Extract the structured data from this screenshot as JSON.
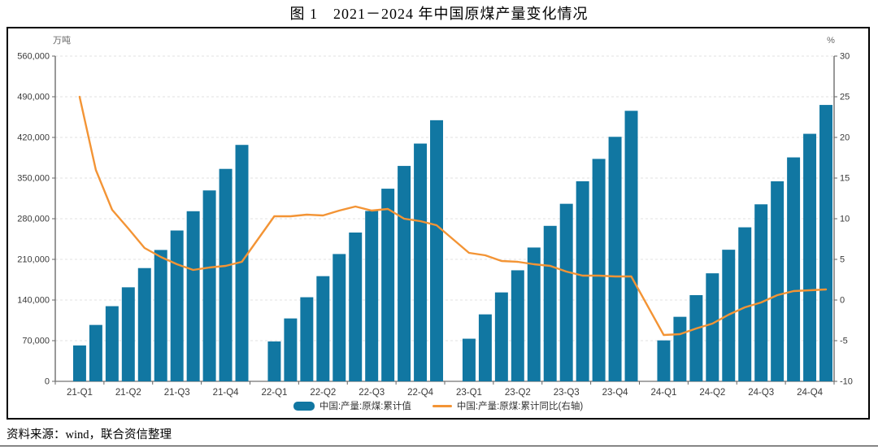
{
  "title": "图 1　2021－2024 年中国原煤产量变化情况",
  "source_note": "资料来源：wind，联合资信整理",
  "colors": {
    "bar": "#1177a2",
    "line": "#f39435",
    "grid": "#e2e2e2",
    "axis_line": "#555555",
    "x_axis_line": "#8a8a8a",
    "tick": "#666666",
    "text": "#3a3a3a",
    "unit_text": "#666666",
    "border": "#000000"
  },
  "legend": [
    {
      "label": "中国:产量:原煤:累计值",
      "type": "bar"
    },
    {
      "label": "中国:产量:原煤:累计同比(右轴)",
      "type": "line"
    }
  ],
  "chart_data": {
    "type": "bar+line",
    "title": "图 1　2021－2024 年中国原煤产量变化情况",
    "left_axis": {
      "unit": "万吨",
      "min": 0,
      "max": 560000,
      "step": 70000,
      "tick_labels": [
        "560,000",
        "490,000",
        "420,000",
        "350,000",
        "280,000",
        "210,000",
        "140,000",
        "70,000",
        "0"
      ]
    },
    "right_axis": {
      "unit": "%",
      "min": -10,
      "max": 30,
      "step": 5,
      "tick_labels": [
        "30",
        "25",
        "20",
        "15",
        "10",
        "5",
        "0",
        "-5",
        "-10"
      ]
    },
    "x_tick_labels": [
      "21-Q1",
      "21-Q2",
      "21-Q3",
      "21-Q4",
      "22-Q1",
      "22-Q2",
      "22-Q3",
      "22-Q4",
      "23-Q1",
      "23-Q2",
      "23-Q3",
      "23-Q4",
      "24-Q1",
      "24-Q2",
      "24-Q3",
      "24-Q4"
    ],
    "months_per_year": 12,
    "bars_per_year": 11,
    "months": [
      "2021-02",
      "2021-03",
      "2021-04",
      "2021-05",
      "2021-06",
      "2021-07",
      "2021-08",
      "2021-09",
      "2021-10",
      "2021-11",
      "2021-12",
      "2022-02",
      "2022-03",
      "2022-04",
      "2022-05",
      "2022-06",
      "2022-07",
      "2022-08",
      "2022-09",
      "2022-10",
      "2022-11",
      "2022-12",
      "2023-02",
      "2023-03",
      "2023-04",
      "2023-05",
      "2023-06",
      "2023-07",
      "2023-08",
      "2023-09",
      "2023-10",
      "2023-11",
      "2023-12",
      "2024-02",
      "2024-03",
      "2024-04",
      "2024-05",
      "2024-06",
      "2024-07",
      "2024-08",
      "2024-09",
      "2024-10",
      "2024-11",
      "2024-12"
    ],
    "series": [
      {
        "name": "中国:产量:原煤:累计值",
        "type": "bar",
        "axis": "left",
        "values": [
          61800,
          97100,
          129400,
          161900,
          195000,
          226200,
          259700,
          292900,
          328700,
          365800,
          407100,
          68700,
          108300,
          144800,
          181100,
          219200,
          256200,
          293300,
          331700,
          370900,
          409400,
          449600,
          73400,
          115300,
          153100,
          191200,
          230400,
          267700,
          305700,
          344500,
          383000,
          421000,
          465800,
          70500,
          111100,
          148400,
          186000,
          226600,
          265200,
          304800,
          344400,
          385600,
          426200,
          475900
        ]
      },
      {
        "name": "中国:产量:原煤:累计同比(右轴)",
        "type": "line",
        "axis": "right",
        "values": [
          25.0,
          16.0,
          11.1,
          8.8,
          6.4,
          5.3,
          4.4,
          3.7,
          4.0,
          4.2,
          4.7,
          10.3,
          10.3,
          10.5,
          10.4,
          11.0,
          11.5,
          11.0,
          11.2,
          10.0,
          9.7,
          9.2,
          5.8,
          5.5,
          4.8,
          4.7,
          4.4,
          4.2,
          3.5,
          3.0,
          3.0,
          2.9,
          2.9,
          -4.3,
          -4.2,
          -3.5,
          -2.9,
          -1.8,
          -0.9,
          -0.3,
          0.6,
          1.1,
          1.2,
          1.3
        ]
      }
    ],
    "legend_position": "bottom",
    "grid": "horizontal-dashed"
  }
}
